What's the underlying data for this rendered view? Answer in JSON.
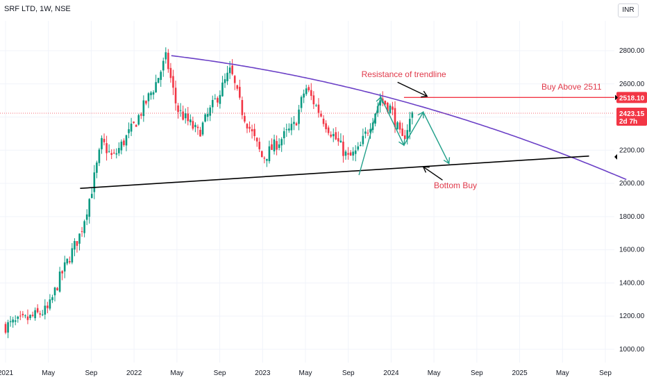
{
  "header": {
    "title": "SRF LTD, 1W, NSE",
    "currency": "INR"
  },
  "colors": {
    "up": "#089981",
    "down": "#f23645",
    "trendline": "#6a3fc6",
    "support": "#000000",
    "level": "#f23645",
    "projection": "#22a08a",
    "annotation": "#e0394a"
  },
  "chart_data": {
    "type": "candlestick",
    "title": "SRF LTD, 1W, NSE",
    "x_axis_labels": [
      "2021",
      "May",
      "Sep",
      "2022",
      "May",
      "Sep",
      "2023",
      "May",
      "Sep",
      "2024",
      "May",
      "Sep",
      "2025",
      "May",
      "Sep"
    ],
    "y_axis_labels": [
      "1000.00",
      "1200.00",
      "1400.00",
      "1600.00",
      "1800.00",
      "2000.00",
      "2200.00",
      "2400.00",
      "2600.00",
      "2800.00"
    ],
    "ylim": [
      920,
      2980
    ],
    "xlim": [
      "2021-01",
      "2025-09"
    ],
    "grid": true,
    "price_series_approx": [
      [
        "2021-01",
        1140
      ],
      [
        "2021-03",
        1180
      ],
      [
        "2021-05",
        1240
      ],
      [
        "2021-06",
        1420
      ],
      [
        "2021-08",
        1700
      ],
      [
        "2021-09",
        1950
      ],
      [
        "2021-10",
        2250
      ],
      [
        "2021-11",
        2150
      ],
      [
        "2022-01",
        2350
      ],
      [
        "2022-03",
        2600
      ],
      [
        "2022-04",
        2760
      ],
      [
        "2022-05",
        2450
      ],
      [
        "2022-07",
        2300
      ],
      [
        "2022-09",
        2550
      ],
      [
        "2022-10",
        2680
      ],
      [
        "2022-11",
        2450
      ],
      [
        "2023-01",
        2150
      ],
      [
        "2023-02",
        2220
      ],
      [
        "2023-04",
        2350
      ],
      [
        "2023-05",
        2580
      ],
      [
        "2023-07",
        2350
      ],
      [
        "2023-09",
        2150
      ],
      [
        "2023-10",
        2200
      ],
      [
        "2023-12",
        2510
      ],
      [
        "2024-01",
        2450
      ],
      [
        "2024-02",
        2250
      ],
      [
        "2024-03",
        2423
      ]
    ],
    "annotations": {
      "resistance_label": "Resistance of trendline",
      "breakout_label": "Buy Above 2511",
      "support_label": "Bottom Buy",
      "breakout_level": 2518.1,
      "breakout_level_label": "2518.10",
      "last_price": 2423.15,
      "last_price_label": "2423.15",
      "countdown_label": "2d 7h"
    }
  }
}
